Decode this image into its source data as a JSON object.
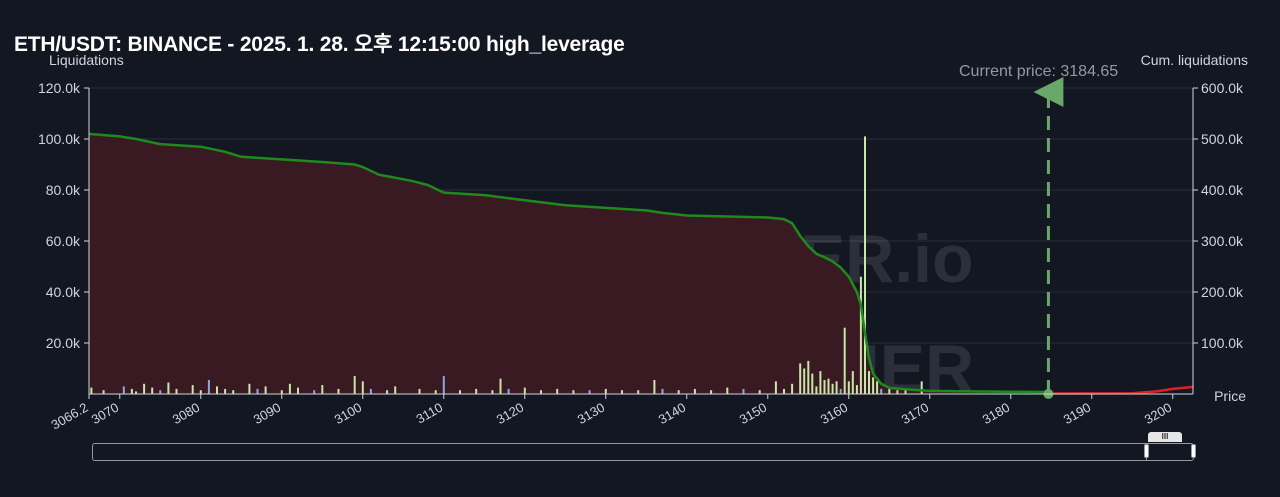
{
  "title": "ETH/USDT: BINANCE - 2025. 1. 28. 오후 12:15:00 high_leverage",
  "current_price_label": "Current price: 3184.65",
  "watermark": {
    "main": "THE KINGFISHER",
    "suffix": ".io"
  },
  "colors": {
    "background": "#131722",
    "cum_line_green": "#1e8a1e",
    "cum_line_red": "#e02020",
    "area_fill": "#3a1a22",
    "bars": "#c8e6a8",
    "bars_blue": "#8fa8d8",
    "current_price_line": "#6aa86a",
    "grid": "#2a2e39",
    "axis_text": "#d1d4dc"
  },
  "chart_data": {
    "type": "bar",
    "xlim": [
      3066.2,
      3202.5
    ],
    "x_ticks": [
      "3070",
      "3080",
      "3090",
      "3100",
      "3110",
      "3120",
      "3130",
      "3140",
      "3150",
      "3160",
      "3170",
      "3180",
      "3190",
      "3200"
    ],
    "x_start_label": "3066.2",
    "xlabel": "Price",
    "left_axis": {
      "label": "Liquidations",
      "ylim": [
        0,
        120000
      ],
      "ticks": [
        "20.0k",
        "40.0k",
        "60.0k",
        "80.0k",
        "100.0k",
        "120.0k"
      ]
    },
    "right_axis": {
      "label": "Cum. liquidations",
      "ylim": [
        0,
        600000
      ],
      "ticks": [
        "100.0k",
        "200.0k",
        "300.0k",
        "400.0k",
        "500.0k",
        "600.0k"
      ]
    },
    "current_price": 3184.65,
    "liquidation_bars": {
      "x": [
        3066.5,
        3068,
        3070.5,
        3071.5,
        3072,
        3073,
        3074,
        3075,
        3076,
        3077,
        3079,
        3080,
        3081,
        3082,
        3083,
        3084,
        3086,
        3087,
        3088,
        3090,
        3091,
        3092,
        3094,
        3095,
        3097,
        3099,
        3100,
        3101,
        3103,
        3104,
        3107,
        3109,
        3110,
        3112,
        3114,
        3116,
        3117,
        3118,
        3120,
        3122,
        3124,
        3126,
        3128,
        3130,
        3132,
        3134,
        3136,
        3137,
        3139,
        3141,
        3143,
        3145,
        3147,
        3149,
        3151,
        3152,
        3153,
        3154,
        3154.5,
        3155,
        3155.5,
        3156,
        3156.5,
        3157,
        3157.5,
        3158,
        3158.5,
        3159,
        3159.5,
        3160,
        3160.5,
        3161,
        3161.5,
        3162,
        3162.5,
        3163,
        3163.5,
        3164,
        3165,
        3166,
        3167,
        3169
      ],
      "values": [
        2500,
        1500,
        3000,
        2000,
        1000,
        4000,
        2500,
        1500,
        4500,
        2000,
        3500,
        1500,
        5500,
        3000,
        2000,
        1500,
        4000,
        2000,
        3000,
        1500,
        4000,
        2500,
        1500,
        3500,
        2000,
        7000,
        5000,
        2000,
        1500,
        3000,
        2000,
        1500,
        7000,
        1500,
        2000,
        1500,
        6000,
        2000,
        2500,
        1500,
        2000,
        1500,
        1500,
        2000,
        1500,
        1500,
        5500,
        2000,
        1500,
        2000,
        1500,
        2500,
        2000,
        1500,
        5000,
        2000,
        4000,
        12000,
        10000,
        13000,
        8000,
        3000,
        9000,
        5500,
        6000,
        4000,
        5000,
        2000,
        26000,
        5000,
        9000,
        3500,
        46000,
        101000,
        9000,
        6500,
        5000,
        2000,
        2000,
        1500,
        1500,
        5000
      ]
    },
    "cum_liquidations": {
      "x": [
        3066.2,
        3070,
        3072,
        3075,
        3080,
        3083,
        3085,
        3090,
        3095,
        3099,
        3100,
        3102,
        3106,
        3108,
        3110,
        3115,
        3120,
        3125,
        3130,
        3135,
        3137,
        3140,
        3145,
        3150,
        3152,
        3153,
        3154,
        3155,
        3156,
        3157,
        3158,
        3159,
        3160,
        3161,
        3161.5,
        3162,
        3162.5,
        3163,
        3164,
        3165,
        3168,
        3170,
        3175,
        3180,
        3184.65
      ],
      "values": [
        510000,
        505000,
        500000,
        490000,
        485000,
        475000,
        465000,
        460000,
        455000,
        450000,
        445000,
        430000,
        418000,
        410000,
        395000,
        390000,
        380000,
        370000,
        365000,
        360000,
        355000,
        350000,
        348000,
        346000,
        343000,
        335000,
        310000,
        290000,
        275000,
        268000,
        260000,
        248000,
        230000,
        200000,
        175000,
        120000,
        70000,
        40000,
        20000,
        12000,
        8000,
        6000,
        5000,
        4500,
        4000
      ]
    },
    "cum_short_line": {
      "x": [
        3184.65,
        3195,
        3198,
        3200,
        3202.5
      ],
      "values": [
        1000,
        1500,
        5000,
        10000,
        14000
      ]
    }
  }
}
